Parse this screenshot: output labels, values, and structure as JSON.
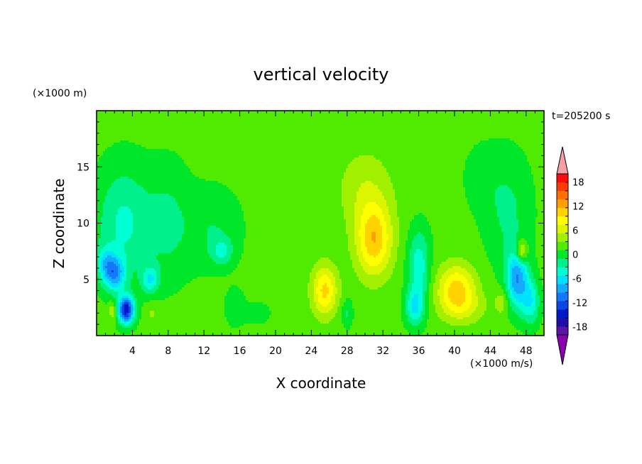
{
  "chart_data": {
    "type": "heatmap",
    "title": "vertical velocity",
    "xlabel": "X coordinate",
    "ylabel": "Z coordinate",
    "x_unit": "(×1000 m/s)",
    "y_unit": "(×1000 m)",
    "time_label": "t=205200 s",
    "xlim": [
      0,
      50
    ],
    "ylim": [
      0,
      20
    ],
    "x_ticks": [
      4,
      8,
      12,
      16,
      20,
      24,
      28,
      32,
      36,
      40,
      44,
      48
    ],
    "y_ticks": [
      5,
      10,
      15
    ],
    "colorbar": {
      "min": -20,
      "max": 20,
      "step": 2,
      "tick_labels": [
        18,
        12,
        6,
        0,
        -6,
        -12,
        -18
      ],
      "colors": [
        "#8a00b0",
        "#5a14a8",
        "#1e0ea8",
        "#0018c8",
        "#0a46e6",
        "#1478ff",
        "#14aaff",
        "#00e1ff",
        "#00ffd2",
        "#00f08c",
        "#00e628",
        "#50eb00",
        "#a0f000",
        "#dcf500",
        "#ffff00",
        "#ffd200",
        "#ffa000",
        "#ff6e00",
        "#ff3c00",
        "#ff0a0a",
        "#f5a0a8"
      ]
    },
    "grid": false,
    "features": [
      {
        "name": "updraft",
        "x": 31,
        "z": 8.5,
        "w": 9,
        "sx": 2.0,
        "sz": 3.2
      },
      {
        "name": "updraft",
        "x": 30,
        "z": 13,
        "w": 3,
        "sx": 3.0,
        "sz": 3.5
      },
      {
        "name": "updraft",
        "x": 25.5,
        "z": 4,
        "w": 8,
        "sx": 1.4,
        "sz": 2.2
      },
      {
        "name": "updraft",
        "x": 40.2,
        "z": 4.2,
        "w": 8,
        "sx": 2.1,
        "sz": 2.1
      },
      {
        "name": "updraft",
        "x": 41,
        "z": 2.5,
        "w": 3,
        "sx": 2.5,
        "sz": 1.5
      },
      {
        "name": "updraft",
        "x": 47.5,
        "z": 7.5,
        "w": 7,
        "sx": 0.6,
        "sz": 1.0
      },
      {
        "name": "updraft",
        "x": 1.8,
        "z": 2.2,
        "w": 4,
        "sx": 0.4,
        "sz": 0.8
      },
      {
        "name": "updraft",
        "x": 6.2,
        "z": 2.0,
        "w": 2,
        "sx": 0.8,
        "sz": 0.8
      },
      {
        "name": "updraft",
        "x": 45.3,
        "z": 3.0,
        "w": 3,
        "sx": 0.8,
        "sz": 1.2
      },
      {
        "name": "updraft",
        "x": 21.5,
        "z": 8.0,
        "w": 0.8,
        "sx": 1.0,
        "sz": 2.0
      },
      {
        "name": "updraft",
        "x": 35.5,
        "z": 14.5,
        "w": 1.2,
        "sx": 1.5,
        "sz": 3.0
      },
      {
        "name": "downdraft",
        "x": 3.3,
        "z": 2.3,
        "w": -16,
        "sx": 0.9,
        "sz": 1.2
      },
      {
        "name": "downdraft",
        "x": 2.0,
        "z": 5.5,
        "w": -9,
        "sx": 1.2,
        "sz": 1.5
      },
      {
        "name": "downdraft",
        "x": 1.0,
        "z": 6.5,
        "w": -5,
        "sx": 1.0,
        "sz": 1.5
      },
      {
        "name": "downdraft",
        "x": 6.0,
        "z": 5.0,
        "w": -6,
        "sx": 1.0,
        "sz": 1.2
      },
      {
        "name": "downdraft",
        "x": 8.0,
        "z": 10.0,
        "w": -3,
        "sx": 2.5,
        "sz": 5.0
      },
      {
        "name": "downdraft",
        "x": 13.0,
        "z": 9.5,
        "w": -2.5,
        "sx": 3.0,
        "sz": 3.5
      },
      {
        "name": "downdraft",
        "x": 14.0,
        "z": 7.5,
        "w": -4,
        "sx": 1.2,
        "sz": 1.2
      },
      {
        "name": "downdraft",
        "x": 3.0,
        "z": 10.0,
        "w": -5,
        "sx": 3.0,
        "sz": 5.0
      },
      {
        "name": "downdraft",
        "x": 36.0,
        "z": 6.0,
        "w": -6,
        "sx": 1.2,
        "sz": 3.5
      },
      {
        "name": "downdraft",
        "x": 35.5,
        "z": 2.5,
        "w": -6,
        "sx": 1.0,
        "sz": 1.5
      },
      {
        "name": "downdraft",
        "x": 47.0,
        "z": 5.0,
        "w": -10,
        "sx": 1.2,
        "sz": 2.5
      },
      {
        "name": "downdraft",
        "x": 48.5,
        "z": 3.0,
        "w": -6,
        "sx": 1.0,
        "sz": 2.0
      },
      {
        "name": "downdraft",
        "x": 46.0,
        "z": 11.0,
        "w": -3,
        "sx": 2.5,
        "sz": 5.0
      },
      {
        "name": "downdraft",
        "x": 43.0,
        "z": 14.0,
        "w": -1.5,
        "sx": 2.0,
        "sz": 3.0
      },
      {
        "name": "downdraft",
        "x": 15.5,
        "z": 2.5,
        "w": -2.5,
        "sx": 1.0,
        "sz": 1.5
      },
      {
        "name": "downdraft",
        "x": 28.0,
        "z": 2.0,
        "w": -3,
        "sx": 0.6,
        "sz": 1.2
      },
      {
        "name": "downdraft",
        "x": 18.0,
        "z": 2.0,
        "w": -1.5,
        "sx": 1.5,
        "sz": 1.0
      }
    ]
  }
}
